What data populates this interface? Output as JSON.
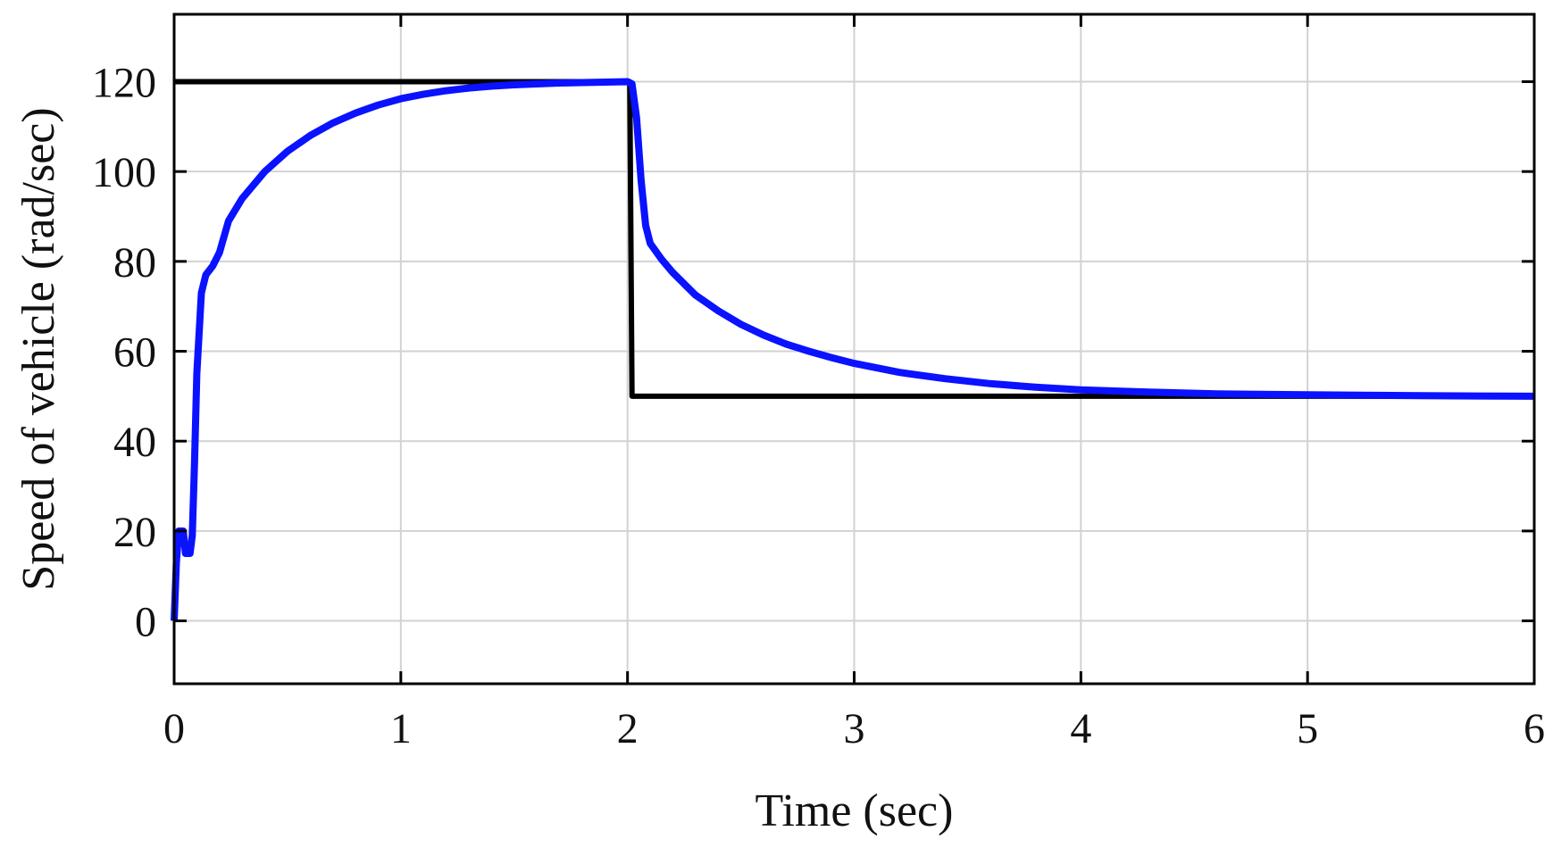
{
  "chart_data": {
    "type": "line",
    "title": "",
    "xlabel": "Time (sec)",
    "ylabel": "Speed of vehicle (rad/sec)",
    "xlim": [
      0,
      6
    ],
    "ylim": [
      -14,
      135
    ],
    "x_ticks": [
      0,
      1,
      2,
      3,
      4,
      5,
      6
    ],
    "y_ticks": [
      0,
      20,
      40,
      60,
      80,
      100,
      120
    ],
    "x_tick_labels": [
      "0",
      "1",
      "2",
      "3",
      "4",
      "5",
      "6"
    ],
    "y_tick_labels": [
      "0",
      "20",
      "40",
      "60",
      "80",
      "100",
      "120"
    ],
    "grid": true,
    "legend": "none",
    "series": [
      {
        "color": "#000000",
        "line_style": "solid",
        "points": [
          [
            0,
            120
          ],
          [
            1.99,
            120
          ],
          [
            2.01,
            120
          ],
          [
            2.02,
            50
          ],
          [
            6,
            50
          ]
        ]
      },
      {
        "color": "#0a12ff",
        "line_style": "solid",
        "points": [
          [
            0,
            0
          ],
          [
            0.01,
            13
          ],
          [
            0.02,
            20
          ],
          [
            0.04,
            20
          ],
          [
            0.05,
            15
          ],
          [
            0.07,
            15
          ],
          [
            0.08,
            19
          ],
          [
            0.09,
            35
          ],
          [
            0.1,
            55
          ],
          [
            0.12,
            73
          ],
          [
            0.14,
            77
          ],
          [
            0.17,
            79
          ],
          [
            0.2,
            82
          ],
          [
            0.24,
            89
          ],
          [
            0.3,
            94
          ],
          [
            0.4,
            100
          ],
          [
            0.5,
            104.5
          ],
          [
            0.6,
            108
          ],
          [
            0.7,
            110.8
          ],
          [
            0.8,
            113
          ],
          [
            0.9,
            114.8
          ],
          [
            1.0,
            116.2
          ],
          [
            1.1,
            117.2
          ],
          [
            1.2,
            118
          ],
          [
            1.3,
            118.6
          ],
          [
            1.4,
            119
          ],
          [
            1.5,
            119.3
          ],
          [
            1.6,
            119.5
          ],
          [
            1.7,
            119.7
          ],
          [
            1.8,
            119.8
          ],
          [
            1.9,
            119.9
          ],
          [
            2.0,
            120
          ],
          [
            2.02,
            119.5
          ],
          [
            2.04,
            112
          ],
          [
            2.06,
            98
          ],
          [
            2.08,
            88
          ],
          [
            2.1,
            84
          ],
          [
            2.15,
            80.5
          ],
          [
            2.2,
            77.5
          ],
          [
            2.3,
            72.5
          ],
          [
            2.4,
            69
          ],
          [
            2.5,
            66
          ],
          [
            2.6,
            63.6
          ],
          [
            2.7,
            61.6
          ],
          [
            2.8,
            60
          ],
          [
            2.9,
            58.6
          ],
          [
            3.0,
            57.3
          ],
          [
            3.2,
            55.3
          ],
          [
            3.4,
            53.9
          ],
          [
            3.6,
            52.8
          ],
          [
            3.8,
            52
          ],
          [
            4.0,
            51.4
          ],
          [
            4.3,
            50.9
          ],
          [
            4.6,
            50.5
          ],
          [
            5.0,
            50.3
          ],
          [
            5.5,
            50.1
          ],
          [
            6.0,
            50
          ]
        ]
      }
    ]
  }
}
